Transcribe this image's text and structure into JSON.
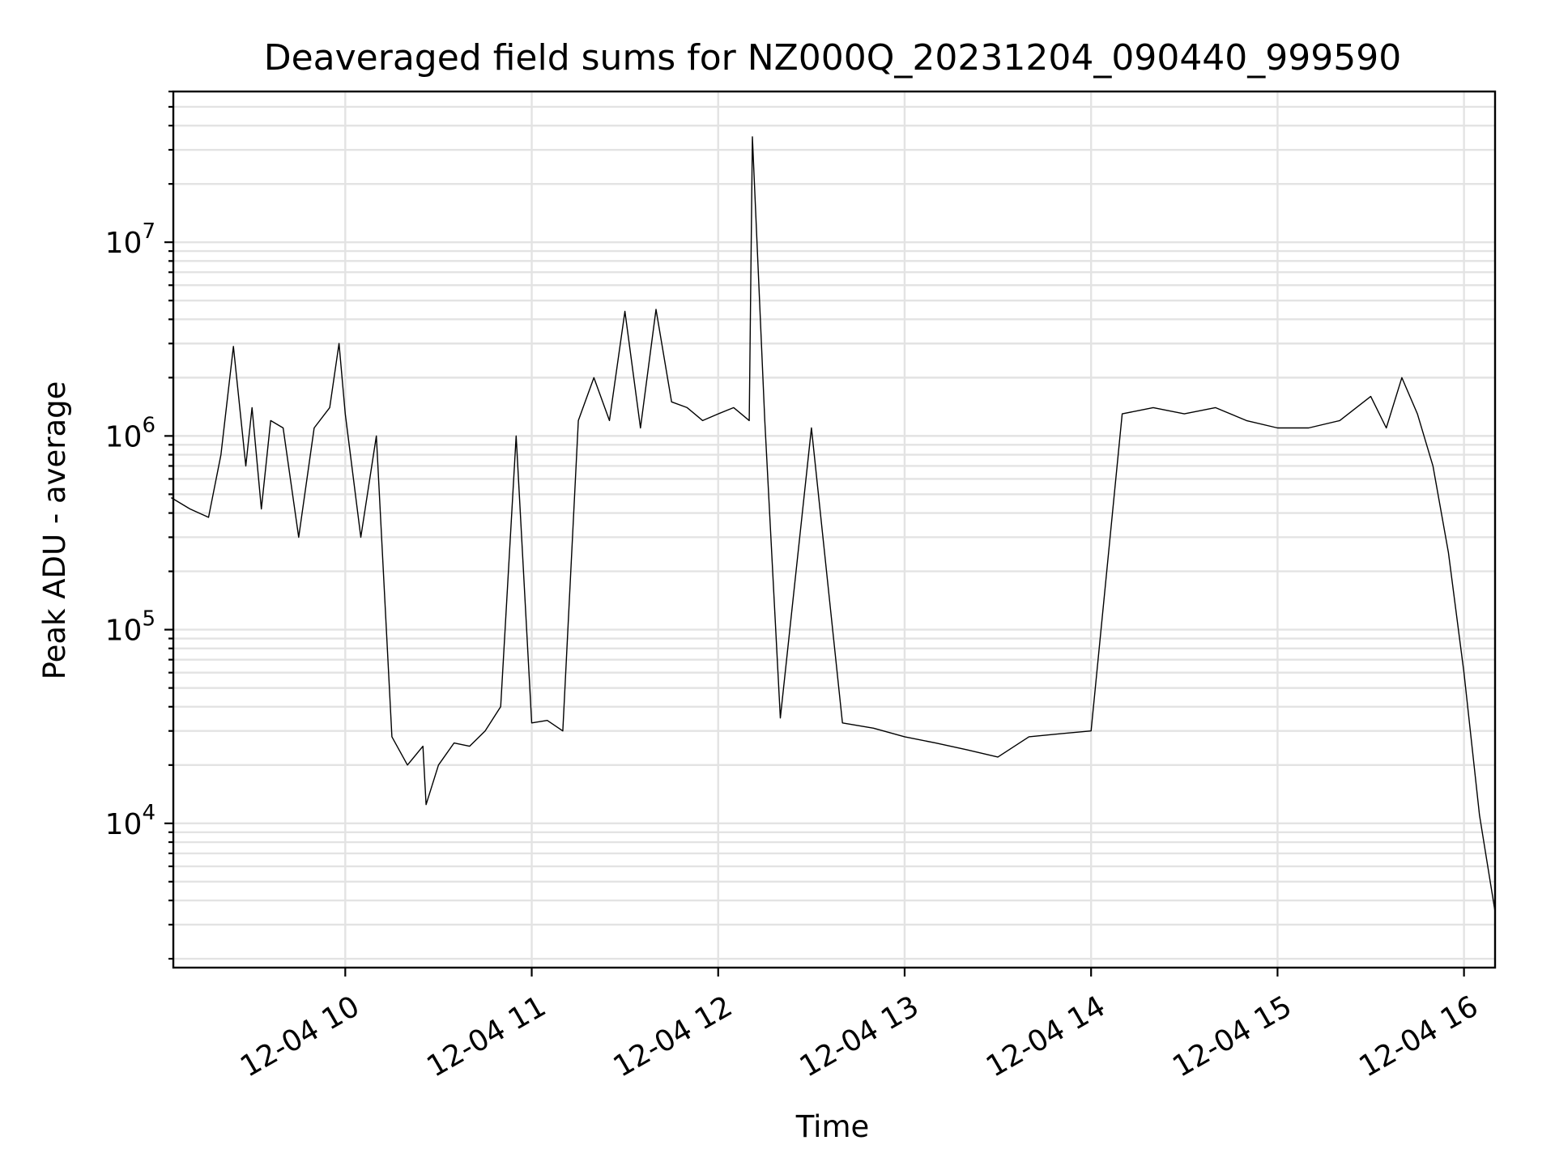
{
  "chart_data": {
    "type": "line",
    "title": "Deaveraged field sums for NZ000Q_20231204_090440_999590",
    "xlabel": "Time",
    "ylabel": "Peak ADU - average",
    "yscale": "log",
    "ylim": [
      1800,
      60000000
    ],
    "xlim": [
      "2023-12-04 09:04:40",
      "2023-12-04 16:10:00"
    ],
    "grid": true,
    "x_ticks": [
      {
        "value": "2023-12-04 10:00",
        "label": "12-04 10"
      },
      {
        "value": "2023-12-04 11:00",
        "label": "12-04 11"
      },
      {
        "value": "2023-12-04 12:00",
        "label": "12-04 12"
      },
      {
        "value": "2023-12-04 13:00",
        "label": "12-04 13"
      },
      {
        "value": "2023-12-04 14:00",
        "label": "12-04 14"
      },
      {
        "value": "2023-12-04 15:00",
        "label": "12-04 15"
      },
      {
        "value": "2023-12-04 16:00",
        "label": "12-04 16"
      }
    ],
    "y_ticks": [
      {
        "value": 10000,
        "base": "10",
        "exp": "4"
      },
      {
        "value": 100000,
        "base": "10",
        "exp": "5"
      },
      {
        "value": 1000000,
        "base": "10",
        "exp": "6"
      },
      {
        "value": 10000000,
        "base": "10",
        "exp": "7"
      }
    ],
    "series": [
      {
        "color": "#000000",
        "x": [
          "2023-12-04 09:04",
          "2023-12-04 09:10",
          "2023-12-04 09:16",
          "2023-12-04 09:20",
          "2023-12-04 09:24",
          "2023-12-04 09:28",
          "2023-12-04 09:30",
          "2023-12-04 09:33",
          "2023-12-04 09:36",
          "2023-12-04 09:40",
          "2023-12-04 09:45",
          "2023-12-04 09:50",
          "2023-12-04 09:55",
          "2023-12-04 09:58",
          "2023-12-04 10:00",
          "2023-12-04 10:05",
          "2023-12-04 10:10",
          "2023-12-04 10:15",
          "2023-12-04 10:20",
          "2023-12-04 10:25",
          "2023-12-04 10:26",
          "2023-12-04 10:30",
          "2023-12-04 10:35",
          "2023-12-04 10:40",
          "2023-12-04 10:45",
          "2023-12-04 10:50",
          "2023-12-04 10:55",
          "2023-12-04 11:00",
          "2023-12-04 11:05",
          "2023-12-04 11:10",
          "2023-12-04 11:15",
          "2023-12-04 11:20",
          "2023-12-04 11:25",
          "2023-12-04 11:30",
          "2023-12-04 11:35",
          "2023-12-04 11:40",
          "2023-12-04 11:45",
          "2023-12-04 11:50",
          "2023-12-04 11:55",
          "2023-12-04 12:00",
          "2023-12-04 12:05",
          "2023-12-04 12:10",
          "2023-12-04 12:11",
          "2023-12-04 12:15",
          "2023-12-04 12:20",
          "2023-12-04 12:30",
          "2023-12-04 12:40",
          "2023-12-04 12:50",
          "2023-12-04 13:00",
          "2023-12-04 13:10",
          "2023-12-04 13:20",
          "2023-12-04 13:30",
          "2023-12-04 13:40",
          "2023-12-04 13:50",
          "2023-12-04 14:00",
          "2023-12-04 14:10",
          "2023-12-04 14:20",
          "2023-12-04 14:30",
          "2023-12-04 14:40",
          "2023-12-04 14:50",
          "2023-12-04 15:00",
          "2023-12-04 15:10",
          "2023-12-04 15:20",
          "2023-12-04 15:30",
          "2023-12-04 15:35",
          "2023-12-04 15:40",
          "2023-12-04 15:45",
          "2023-12-04 15:50",
          "2023-12-04 15:55",
          "2023-12-04 16:00",
          "2023-12-04 16:05",
          "2023-12-04 16:10"
        ],
        "y": [
          480000,
          420000,
          380000,
          800000,
          2900000,
          700000,
          1400000,
          420000,
          1200000,
          1100000,
          300000,
          1100000,
          1400000,
          3000000,
          1300000,
          300000,
          1000000,
          28000,
          20000,
          25000,
          12500,
          20000,
          26000,
          25000,
          30000,
          40000,
          1000000,
          33000,
          34000,
          30000,
          1200000,
          2000000,
          1200000,
          4400000,
          1100000,
          4500000,
          1500000,
          1400000,
          1200000,
          1300000,
          1400000,
          1200000,
          35000000,
          1200000,
          35000,
          1100000,
          33000,
          31000,
          28000,
          26000,
          24000,
          22000,
          28000,
          29000,
          30000,
          1300000,
          1400000,
          1300000,
          1400000,
          1200000,
          1100000,
          1100000,
          1200000,
          1600000,
          1100000,
          2000000,
          1300000,
          700000,
          250000,
          60000,
          11000,
          3500
        ]
      }
    ]
  }
}
